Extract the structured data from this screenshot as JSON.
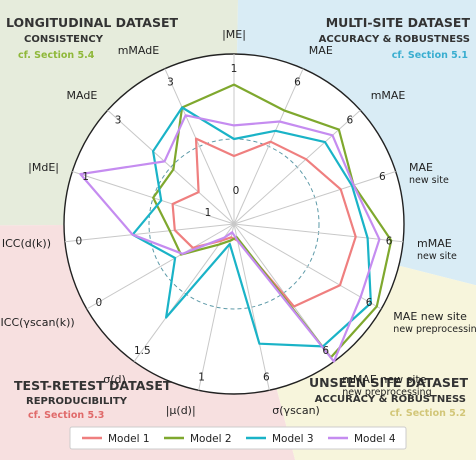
{
  "quadrants": {
    "longitudinal": {
      "title": "LONGITUDINAL DATASET",
      "subtitle": "CONSISTENCY",
      "ref": "cf. Section 5.4",
      "ref_color": "#8fb83a",
      "bg": "#e6ecdc"
    },
    "multisite": {
      "title": "MULTI-SITE DATASET",
      "subtitle": "ACCURACY & ROBUSTNESS",
      "ref": "cf. Section 5.1",
      "ref_color": "#3aaed0",
      "bg": "#d9ecf5"
    },
    "testretest": {
      "title": "TEST-RETEST DATASET",
      "subtitle": "REPRODUCIBILITY",
      "ref": "cf. Section 5.3",
      "ref_color": "#e06a6a",
      "bg": "#f7e0e0"
    },
    "unseen": {
      "title": "UNSEEN SITE DATASET",
      "subtitle": "ACCURACY & ROBUSTNESS",
      "ref": "cf. Section 5.2",
      "ref_color": "#d2c678",
      "bg": "#f7f5dc"
    }
  },
  "chart_data": {
    "type": "radar",
    "center_labels": [
      "0",
      "1"
    ],
    "axes": [
      {
        "label": "|ME|",
        "label2": "",
        "tick_outer": "1",
        "tick_center": "0"
      },
      {
        "label": "MAE",
        "label2": "",
        "tick_outer": "6",
        "tick_center": ""
      },
      {
        "label": "mMAE",
        "label2": "",
        "tick_outer": "6",
        "tick_center": ""
      },
      {
        "label": "MAE",
        "label2": "new site",
        "tick_outer": "6",
        "tick_center": ""
      },
      {
        "label": "mMAE",
        "label2": "new site",
        "tick_outer": "6",
        "tick_center": ""
      },
      {
        "label": "MAE new site",
        "label2": "new preprocessing",
        "tick_outer": "6",
        "tick_center": ""
      },
      {
        "label": "mMAE new site",
        "label2": "new preprocessing",
        "tick_outer": "6",
        "tick_center": ""
      },
      {
        "label": "σ(γscan)",
        "label2": "",
        "tick_outer": "6",
        "tick_center": ""
      },
      {
        "label": "|μ(d)|",
        "label2": "",
        "tick_outer": "1",
        "tick_center": ""
      },
      {
        "label": "σ(d)",
        "label2": "",
        "tick_outer": "1.5",
        "tick_center": ""
      },
      {
        "label": "ICC(γscan(k))",
        "label2": "",
        "tick_outer": "0",
        "tick_center": ""
      },
      {
        "label": "ICC(d(k))",
        "label2": "",
        "tick_outer": "0",
        "tick_center": ""
      },
      {
        "label": "|MdE|",
        "label2": "",
        "tick_outer": "1",
        "tick_center": ""
      },
      {
        "label": "MAdE",
        "label2": "",
        "tick_outer": "3",
        "tick_center": ""
      },
      {
        "label": "mMAdE",
        "label2": "",
        "tick_outer": "3",
        "tick_center": ""
      }
    ],
    "series": [
      {
        "name": "Model 1",
        "color": "#ef7f7f",
        "values": [
          0.4,
          0.53,
          0.57,
          0.66,
          0.72,
          0.72,
          0.6,
          0.1,
          0.08,
          0.12,
          0.28,
          0.35,
          0.38,
          0.28,
          0.55
        ]
      },
      {
        "name": "Model 2",
        "color": "#7fa82e",
        "values": [
          0.82,
          0.73,
          0.83,
          0.74,
          0.93,
          0.97,
          0.97,
          0.08,
          0.1,
          0.15,
          0.36,
          0.38,
          0.5,
          0.48,
          0.75
        ]
      },
      {
        "name": "Model 3",
        "color": "#1ab3c7",
        "values": [
          0.5,
          0.6,
          0.72,
          0.73,
          0.79,
          0.93,
          0.89,
          0.72,
          0.12,
          0.68,
          0.4,
          0.6,
          0.45,
          0.64,
          0.75
        ]
      },
      {
        "name": "Model 4",
        "color": "#c58cf0",
        "values": [
          0.58,
          0.66,
          0.78,
          0.74,
          0.86,
          0.86,
          1.0,
          0.1,
          0.05,
          0.1,
          0.35,
          0.6,
          0.95,
          0.55,
          0.7
        ]
      }
    ],
    "grid": true,
    "legend_position": "bottom"
  }
}
